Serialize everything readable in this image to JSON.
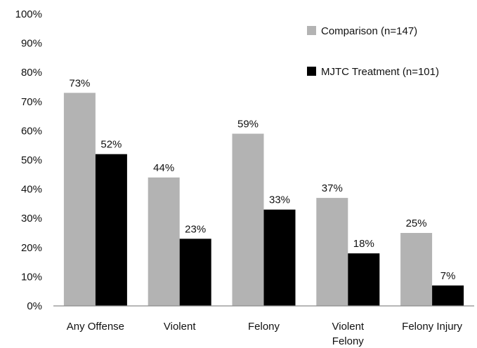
{
  "chart_data": {
    "type": "bar",
    "title": "",
    "xlabel": "",
    "ylabel": "",
    "ylim": [
      0,
      100
    ],
    "y_ticks": [
      "0%",
      "10%",
      "20%",
      "30%",
      "40%",
      "50%",
      "60%",
      "70%",
      "80%",
      "90%",
      "100%"
    ],
    "categories": [
      [
        "Any Offense"
      ],
      [
        "Violent"
      ],
      [
        "Felony"
      ],
      [
        "Violent",
        "Felony"
      ],
      [
        "Felony Injury"
      ]
    ],
    "series": [
      {
        "name": "Comparison (n=147)",
        "color": "#b3b3b3",
        "values": [
          73,
          44,
          59,
          37,
          25
        ],
        "labels": [
          "73%",
          "44%",
          "59%",
          "37%",
          "25%"
        ]
      },
      {
        "name": "MJTC Treatment (n=101)",
        "color": "#000000",
        "values": [
          52,
          23,
          33,
          18,
          7
        ],
        "labels": [
          "52%",
          "23%",
          "33%",
          "18%",
          "7%"
        ]
      }
    ],
    "legend": "top-right",
    "grid": false
  }
}
